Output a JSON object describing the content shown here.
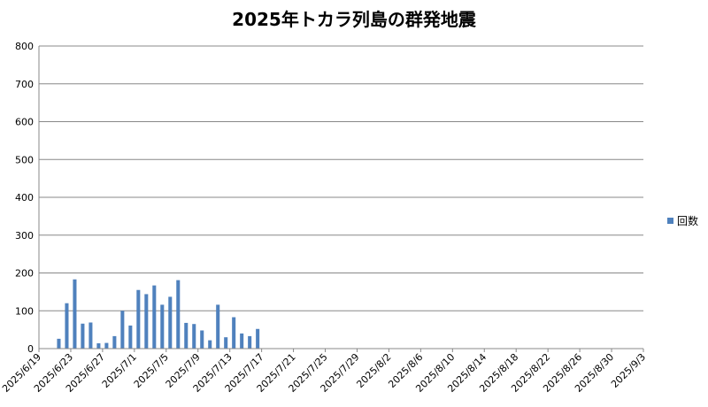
{
  "chart_data": {
    "type": "bar",
    "title": "2025年トカラ列島の群発地震",
    "xlabel": "",
    "ylabel": "",
    "ylim": [
      0,
      800
    ],
    "yticks": [
      0,
      100,
      200,
      300,
      400,
      500,
      600,
      700,
      800
    ],
    "x_start": "2025/6/19",
    "x_end": "2025/9/3",
    "xtick_labels": [
      "2025/6/19",
      "2025/6/23",
      "2025/6/27",
      "2025/7/1",
      "2025/7/5",
      "2025/7/9",
      "2025/7/13",
      "2025/7/17",
      "2025/7/21",
      "2025/7/25",
      "2025/7/29",
      "2025/8/2",
      "2025/8/6",
      "2025/8/10",
      "2025/8/14",
      "2025/8/18",
      "2025/8/22",
      "2025/8/26",
      "2025/8/30",
      "2025/9/3"
    ],
    "grid": "horizontal",
    "legend_position": "right",
    "series": [
      {
        "name": "回数",
        "color": "#4f81bd",
        "points": [
          {
            "date": "2025/6/21",
            "value": 26
          },
          {
            "date": "2025/6/22",
            "value": 120
          },
          {
            "date": "2025/6/23",
            "value": 183
          },
          {
            "date": "2025/6/24",
            "value": 66
          },
          {
            "date": "2025/6/25",
            "value": 69
          },
          {
            "date": "2025/6/26",
            "value": 14
          },
          {
            "date": "2025/6/27",
            "value": 15
          },
          {
            "date": "2025/6/28",
            "value": 33
          },
          {
            "date": "2025/6/29",
            "value": 100
          },
          {
            "date": "2025/6/30",
            "value": 61
          },
          {
            "date": "2025/7/1",
            "value": 155
          },
          {
            "date": "2025/7/2",
            "value": 144
          },
          {
            "date": "2025/7/3",
            "value": 167
          },
          {
            "date": "2025/7/4",
            "value": 116
          },
          {
            "date": "2025/7/5",
            "value": 137
          },
          {
            "date": "2025/7/6",
            "value": 181
          },
          {
            "date": "2025/7/7",
            "value": 68
          },
          {
            "date": "2025/7/8",
            "value": 65
          },
          {
            "date": "2025/7/9",
            "value": 48
          },
          {
            "date": "2025/7/10",
            "value": 22
          },
          {
            "date": "2025/7/11",
            "value": 116
          },
          {
            "date": "2025/7/12",
            "value": 30
          },
          {
            "date": "2025/7/13",
            "value": 83
          },
          {
            "date": "2025/7/14",
            "value": 40
          },
          {
            "date": "2025/7/15",
            "value": 33
          },
          {
            "date": "2025/7/16",
            "value": 52
          }
        ]
      }
    ]
  }
}
